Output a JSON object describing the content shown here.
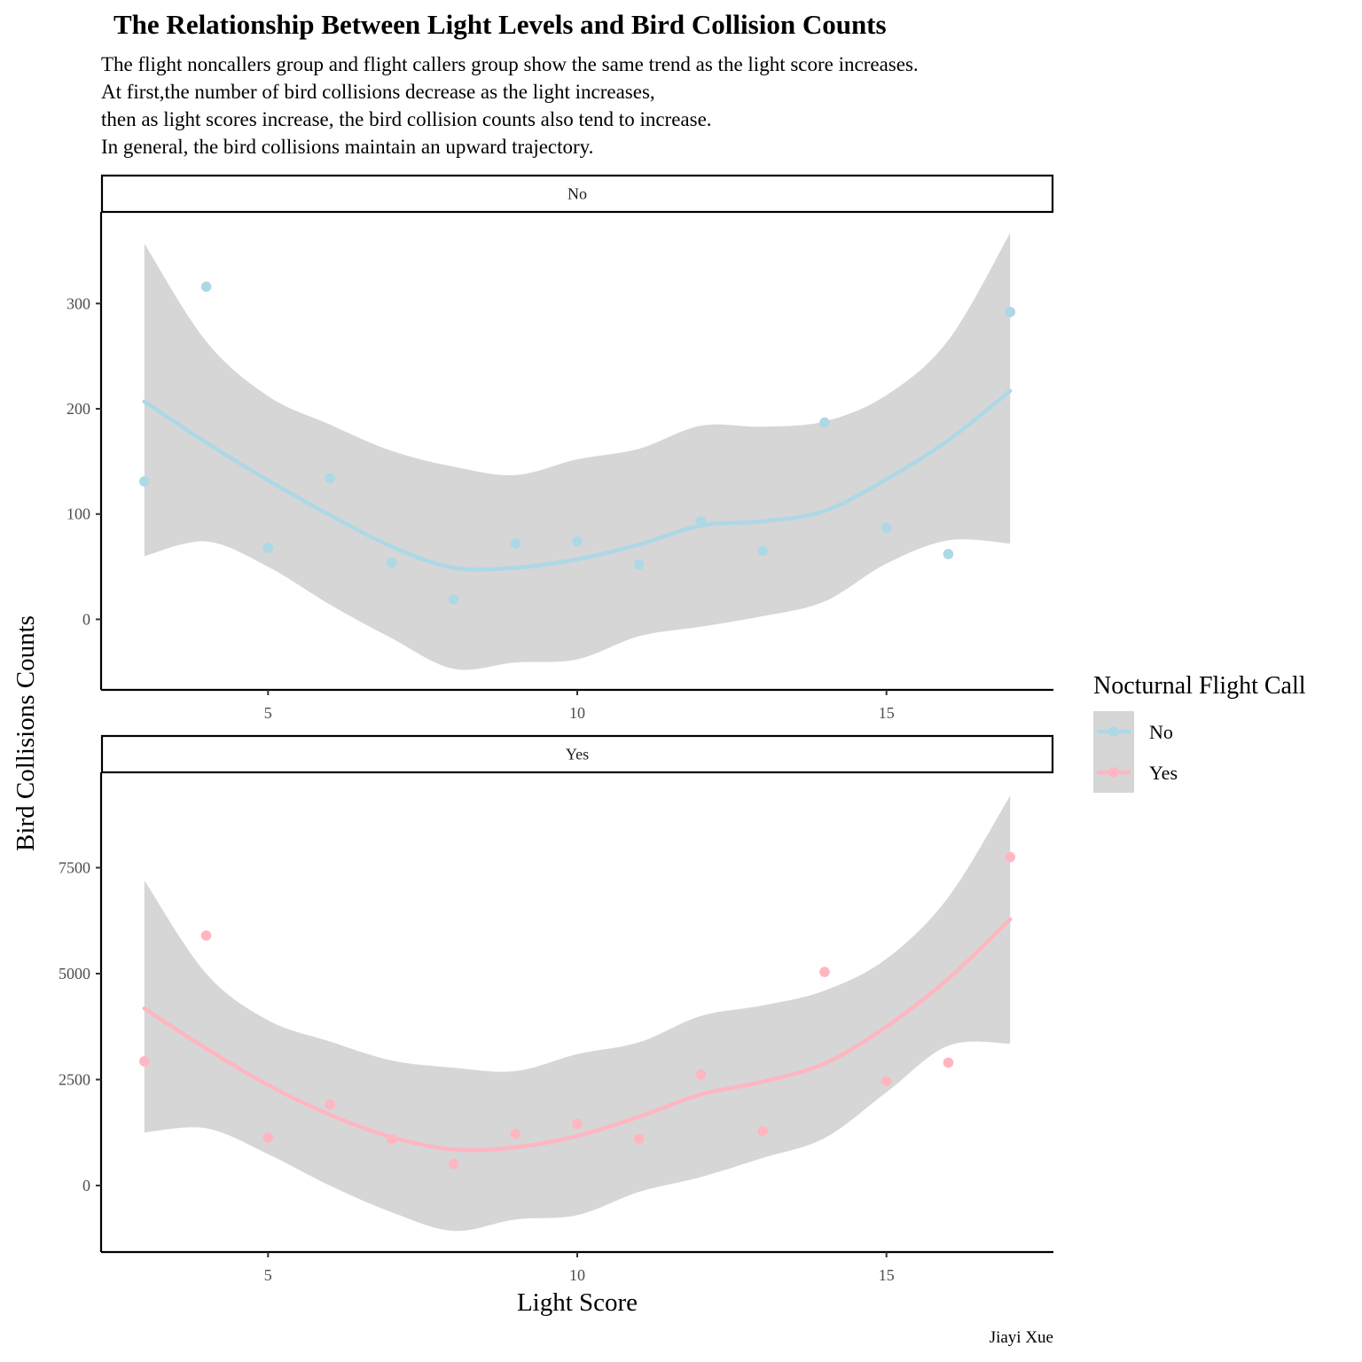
{
  "chart_data": {
    "type": "scatter",
    "title": "The Relationship Between Light Levels and Bird Collision Counts",
    "subtitle_lines": [
      "The flight noncallers group and flight callers group show the same trend as the light score increases.",
      "At first,the number of bird collisions decrease as the light increases,",
      "then as light scores increase, the bird collision counts also tend to increase.",
      "In general, the bird collisions maintain an upward trajectory."
    ],
    "xlabel": "Light Score",
    "ylabel": "Bird Collisions Counts",
    "caption": "Jiayi Xue",
    "legend": {
      "title": "Nocturnal Flight Call",
      "position": "right",
      "items": [
        {
          "label": "No",
          "color": "#add8e6"
        },
        {
          "label": "Yes",
          "color": "#ffb6c1"
        }
      ]
    },
    "ribbon_color": "#d6d6d6",
    "grid": false,
    "x_ticks": [
      5,
      10,
      15
    ],
    "xlim": [
      2.3,
      17.7
    ],
    "facets": [
      {
        "label": "No",
        "color": "#add8e6",
        "ylim": [
          -67,
          387
        ],
        "y_ticks": [
          0,
          100,
          200,
          300
        ],
        "points": {
          "x": [
            3,
            4,
            5,
            6,
            7,
            8,
            9,
            10,
            11,
            12,
            13,
            14,
            15,
            16,
            17
          ],
          "y": [
            131,
            316,
            68,
            134,
            54,
            19,
            72,
            74,
            52,
            93,
            65,
            187,
            87,
            62,
            292
          ]
        },
        "smooth": {
          "x": [
            3,
            4,
            5,
            6,
            7,
            8,
            9,
            10,
            11,
            12,
            13,
            14,
            15,
            16,
            17
          ],
          "fit": [
            207,
            168,
            132,
            99,
            69,
            49,
            49,
            57,
            71,
            89,
            93,
            103,
            133,
            170,
            217
          ],
          "lower": [
            60,
            74,
            50,
            14,
            -18,
            -47,
            -41,
            -38,
            -16,
            -7,
            3,
            17,
            53,
            75,
            72
          ],
          "upper": [
            357,
            264,
            212,
            185,
            160,
            145,
            137,
            152,
            162,
            184,
            183,
            188,
            213,
            265,
            367
          ]
        }
      },
      {
        "label": "Yes",
        "color": "#ffb6c1",
        "ylim": [
          -1570,
          9750
        ],
        "y_ticks": [
          0,
          2500,
          5000,
          7500
        ],
        "points": {
          "x": [
            3,
            4,
            5,
            6,
            7,
            8,
            9,
            10,
            11,
            12,
            13,
            14,
            15,
            16,
            17
          ],
          "y": [
            2930,
            5900,
            1130,
            1910,
            1090,
            510,
            1220,
            1450,
            1100,
            2620,
            1280,
            5040,
            2460,
            2900,
            7750
          ]
        },
        "smooth": {
          "x": [
            3,
            4,
            5,
            6,
            7,
            8,
            9,
            10,
            11,
            12,
            13,
            14,
            15,
            16,
            17
          ],
          "fit": [
            4180,
            3230,
            2370,
            1670,
            1140,
            850,
            900,
            1170,
            1620,
            2150,
            2450,
            2880,
            3750,
            4880,
            6280
          ],
          "lower": [
            1250,
            1350,
            740,
            0,
            -630,
            -1070,
            -800,
            -700,
            -150,
            200,
            650,
            1120,
            2200,
            3300,
            3350
          ],
          "upper": [
            7200,
            5000,
            3900,
            3400,
            2950,
            2780,
            2700,
            3100,
            3380,
            4000,
            4250,
            4600,
            5350,
            6800,
            9200
          ]
        }
      }
    ]
  }
}
